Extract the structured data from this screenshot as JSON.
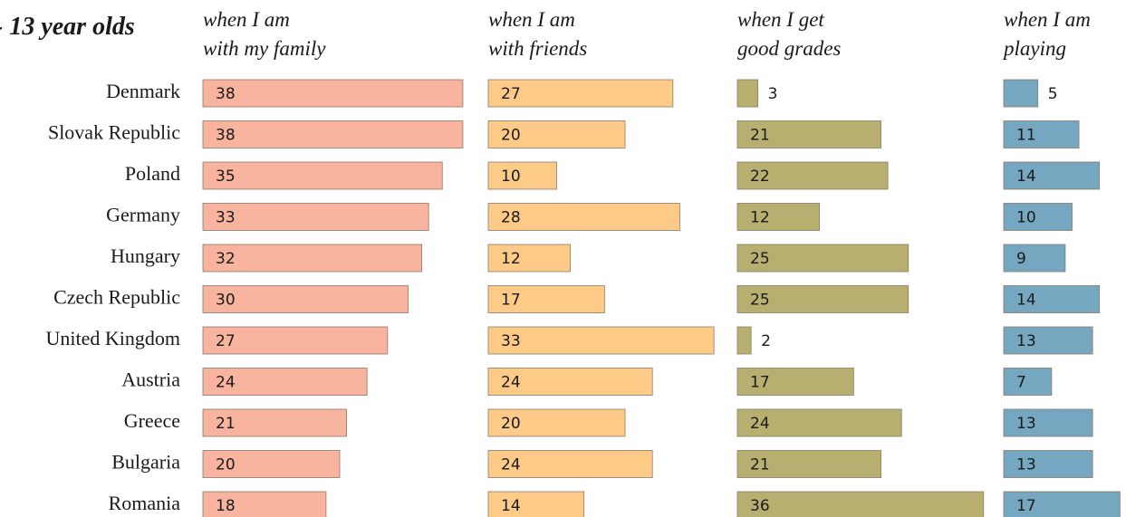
{
  "chart_data": {
    "type": "bar",
    "title": "- 13 year olds",
    "categories": [
      "Denmark",
      "Slovak Republic",
      "Poland",
      "Germany",
      "Hungary",
      "Czech Republic",
      "United Kingdom",
      "Austria",
      "Greece",
      "Bulgaria",
      "Romania"
    ],
    "series": [
      {
        "name": "when I am\nwith my family",
        "color": "#f8b49e",
        "values": [
          38,
          38,
          35,
          33,
          32,
          30,
          27,
          24,
          21,
          20,
          18
        ]
      },
      {
        "name": "when I am\nwith friends",
        "color": "#fdca88",
        "values": [
          27,
          20,
          10,
          28,
          12,
          17,
          33,
          24,
          20,
          24,
          14
        ]
      },
      {
        "name": "when I get\ngood grades",
        "color": "#b6af6f",
        "values": [
          3,
          21,
          22,
          12,
          25,
          25,
          2,
          17,
          24,
          21,
          36
        ]
      },
      {
        "name": "when I am\nplaying",
        "color": "#75a7c0",
        "values": [
          5,
          11,
          14,
          10,
          9,
          14,
          13,
          7,
          13,
          13,
          17
        ]
      }
    ]
  }
}
